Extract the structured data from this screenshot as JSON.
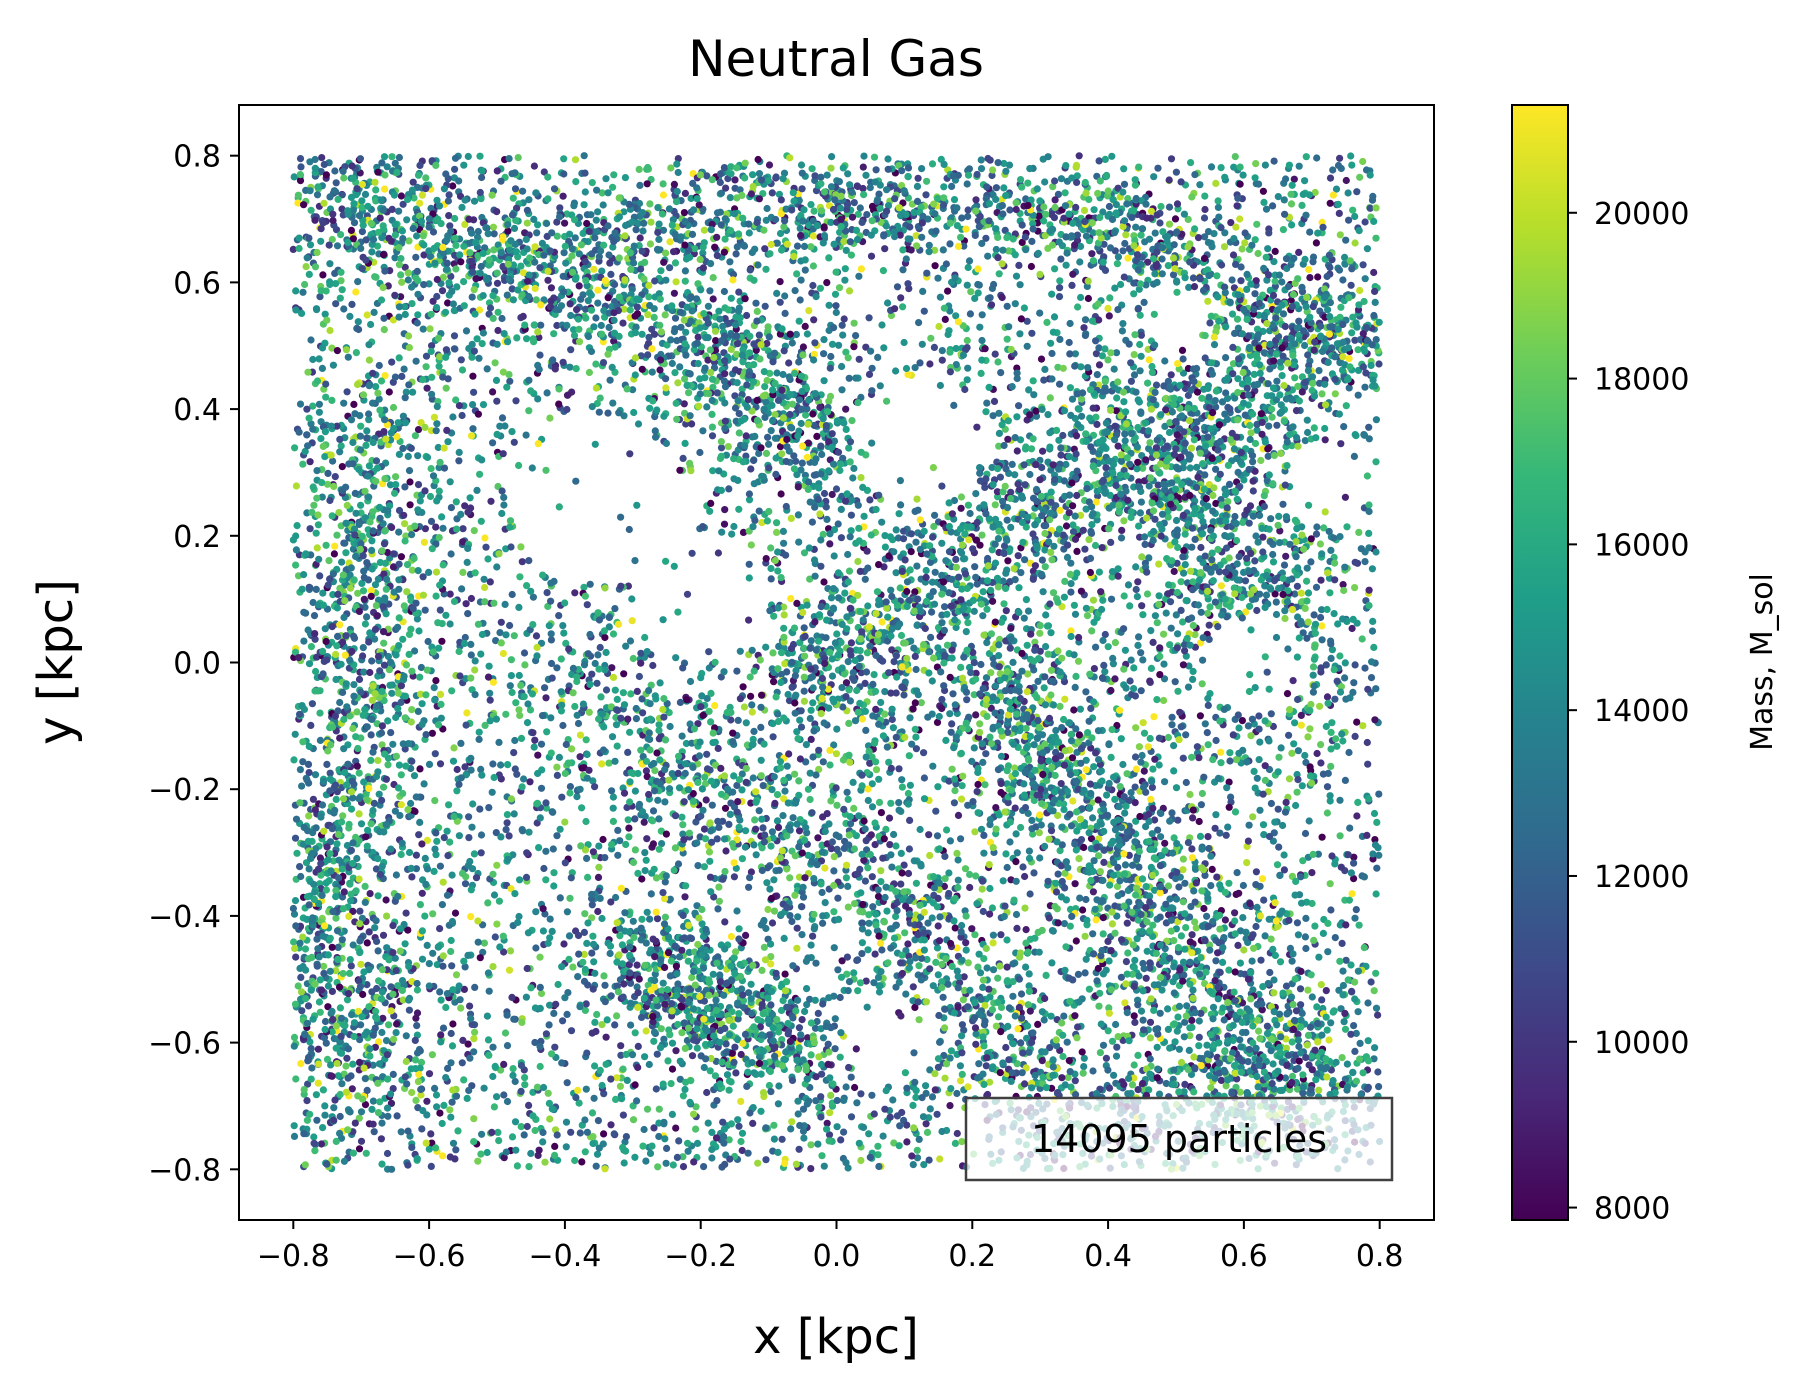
{
  "chart_data": {
    "type": "scatter",
    "title": "Neutral Gas",
    "xlabel": "x [kpc]",
    "ylabel": "y [kpc]",
    "xlim": [
      -0.88,
      0.88
    ],
    "ylim": [
      -0.88,
      0.88
    ],
    "xticks": [
      -0.8,
      -0.6,
      -0.4,
      -0.2,
      0.0,
      0.2,
      0.4,
      0.6,
      0.8
    ],
    "yticks": [
      -0.8,
      -0.6,
      -0.4,
      -0.2,
      0.0,
      0.2,
      0.4,
      0.6,
      0.8
    ],
    "xtick_labels": [
      "−0.8",
      "−0.6",
      "−0.4",
      "−0.2",
      "0.0",
      "0.2",
      "0.4",
      "0.6",
      "0.8"
    ],
    "ytick_labels": [
      "−0.8",
      "−0.6",
      "−0.4",
      "−0.2",
      "0.0",
      "0.2",
      "0.4",
      "0.6",
      "0.8"
    ],
    "grid": false,
    "annotation": "14095 particles",
    "annotation_placement": "bottom-right",
    "colorbar": {
      "label": "Mass, M_sol",
      "colormap": "viridis",
      "range": [
        7850,
        21300
      ],
      "ticks": [
        8000,
        10000,
        12000,
        14000,
        16000,
        18000,
        20000
      ],
      "tick_labels": [
        "8000",
        "10000",
        "12000",
        "14000",
        "16000",
        "18000",
        "20000"
      ],
      "stops": [
        "#440154",
        "#482878",
        "#3e4989",
        "#31688e",
        "#26828e",
        "#1f9e89",
        "#35b779",
        "#6ece58",
        "#b5de2b",
        "#fde725"
      ]
    },
    "particle_count": 14095,
    "particle_distribution": {
      "x_range": [
        -0.8,
        0.8
      ],
      "y_range": [
        -0.8,
        0.8
      ],
      "background_fraction": 0.5,
      "dense_regions": [
        {
          "points": [
            [
              -0.8,
              0.75
            ],
            [
              -0.55,
              0.65
            ],
            [
              -0.3,
              0.58
            ],
            [
              -0.1,
              0.45
            ],
            [
              0.0,
              0.3
            ]
          ],
          "spread": 0.05,
          "weight": 1.2
        },
        {
          "points": [
            [
              -0.35,
              0.68
            ],
            [
              -0.1,
              0.72
            ],
            [
              0.1,
              0.72
            ],
            [
              0.35,
              0.7
            ],
            [
              0.5,
              0.65
            ],
            [
              0.65,
              0.55
            ],
            [
              0.8,
              0.5
            ]
          ],
          "spread": 0.04,
          "weight": 1.0
        },
        {
          "points": [
            [
              0.75,
              0.5
            ],
            [
              0.55,
              0.4
            ],
            [
              0.35,
              0.3
            ],
            [
              0.2,
              0.15
            ],
            [
              0.05,
              0.05
            ],
            [
              -0.05,
              -0.05
            ]
          ],
          "spread": 0.06,
          "weight": 1.2
        },
        {
          "points": [
            [
              -0.7,
              0.4
            ],
            [
              -0.7,
              0.1
            ],
            [
              -0.72,
              -0.2
            ],
            [
              -0.75,
              -0.45
            ],
            [
              -0.7,
              -0.7
            ]
          ],
          "spread": 0.05,
          "weight": 1.1
        },
        {
          "points": [
            [
              0.25,
              0.0
            ],
            [
              0.3,
              -0.15
            ],
            [
              0.4,
              -0.3
            ],
            [
              0.5,
              -0.45
            ],
            [
              0.6,
              -0.6
            ],
            [
              0.75,
              -0.65
            ]
          ],
          "spread": 0.06,
          "weight": 1.3
        },
        {
          "points": [
            [
              -0.4,
              -0.05
            ],
            [
              -0.2,
              -0.2
            ],
            [
              0.0,
              -0.3
            ],
            [
              0.15,
              -0.45
            ],
            [
              0.2,
              -0.6
            ],
            [
              0.4,
              -0.7
            ],
            [
              0.7,
              -0.7
            ]
          ],
          "spread": 0.06,
          "weight": 1.1
        },
        {
          "points": [
            [
              -0.3,
              -0.45
            ],
            [
              -0.2,
              -0.55
            ],
            [
              -0.05,
              -0.6
            ]
          ],
          "spread": 0.05,
          "weight": 0.6
        },
        {
          "points": [
            [
              0.45,
              0.35
            ],
            [
              0.55,
              0.25
            ],
            [
              0.6,
              0.1
            ],
            [
              0.65,
              -0.05
            ]
          ],
          "spread": 0.06,
          "weight": 0.7
        }
      ],
      "voids": [
        {
          "center": [
            -0.35,
            0.25
          ],
          "radius": 0.13
        },
        {
          "center": [
            -0.2,
            0.1
          ],
          "radius": 0.1
        },
        {
          "center": [
            0.12,
            0.35
          ],
          "radius": 0.1
        },
        {
          "center": [
            0.62,
            0.0
          ],
          "radius": 0.08
        },
        {
          "center": [
            0.72,
            0.28
          ],
          "radius": 0.06
        },
        {
          "center": [
            0.08,
            -0.6
          ],
          "radius": 0.07
        },
        {
          "center": [
            0.5,
            0.55
          ],
          "radius": 0.05
        }
      ]
    }
  }
}
